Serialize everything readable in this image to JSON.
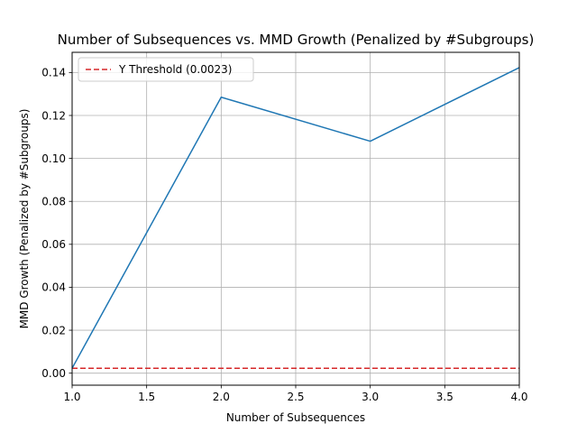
{
  "chart_data": {
    "type": "line",
    "title": "Number of Subsequences vs. MMD Growth (Penalized by #Subgroups)",
    "xlabel": "Number of Subsequences",
    "ylabel": "MMD Growth (Penalized by #Subgroups)",
    "x": [
      1,
      2,
      3,
      4
    ],
    "series": [
      {
        "values": [
          0.0023,
          0.1285,
          0.108,
          0.1423
        ],
        "color": "#1f77b4"
      }
    ],
    "threshold": {
      "name": "Y Threshold (0.0023)",
      "value": 0.0023,
      "color": "#d62728",
      "style": "dashed"
    },
    "xlim": [
      1.0,
      4.0
    ],
    "ylim": [
      -0.0056,
      0.1494
    ],
    "xticks": [
      "1.0",
      "1.5",
      "2.0",
      "2.5",
      "3.0",
      "3.5",
      "4.0"
    ],
    "yticks": [
      "0.00",
      "0.02",
      "0.04",
      "0.06",
      "0.08",
      "0.10",
      "0.12",
      "0.14"
    ],
    "grid": true,
    "legend_position": "top-left"
  }
}
